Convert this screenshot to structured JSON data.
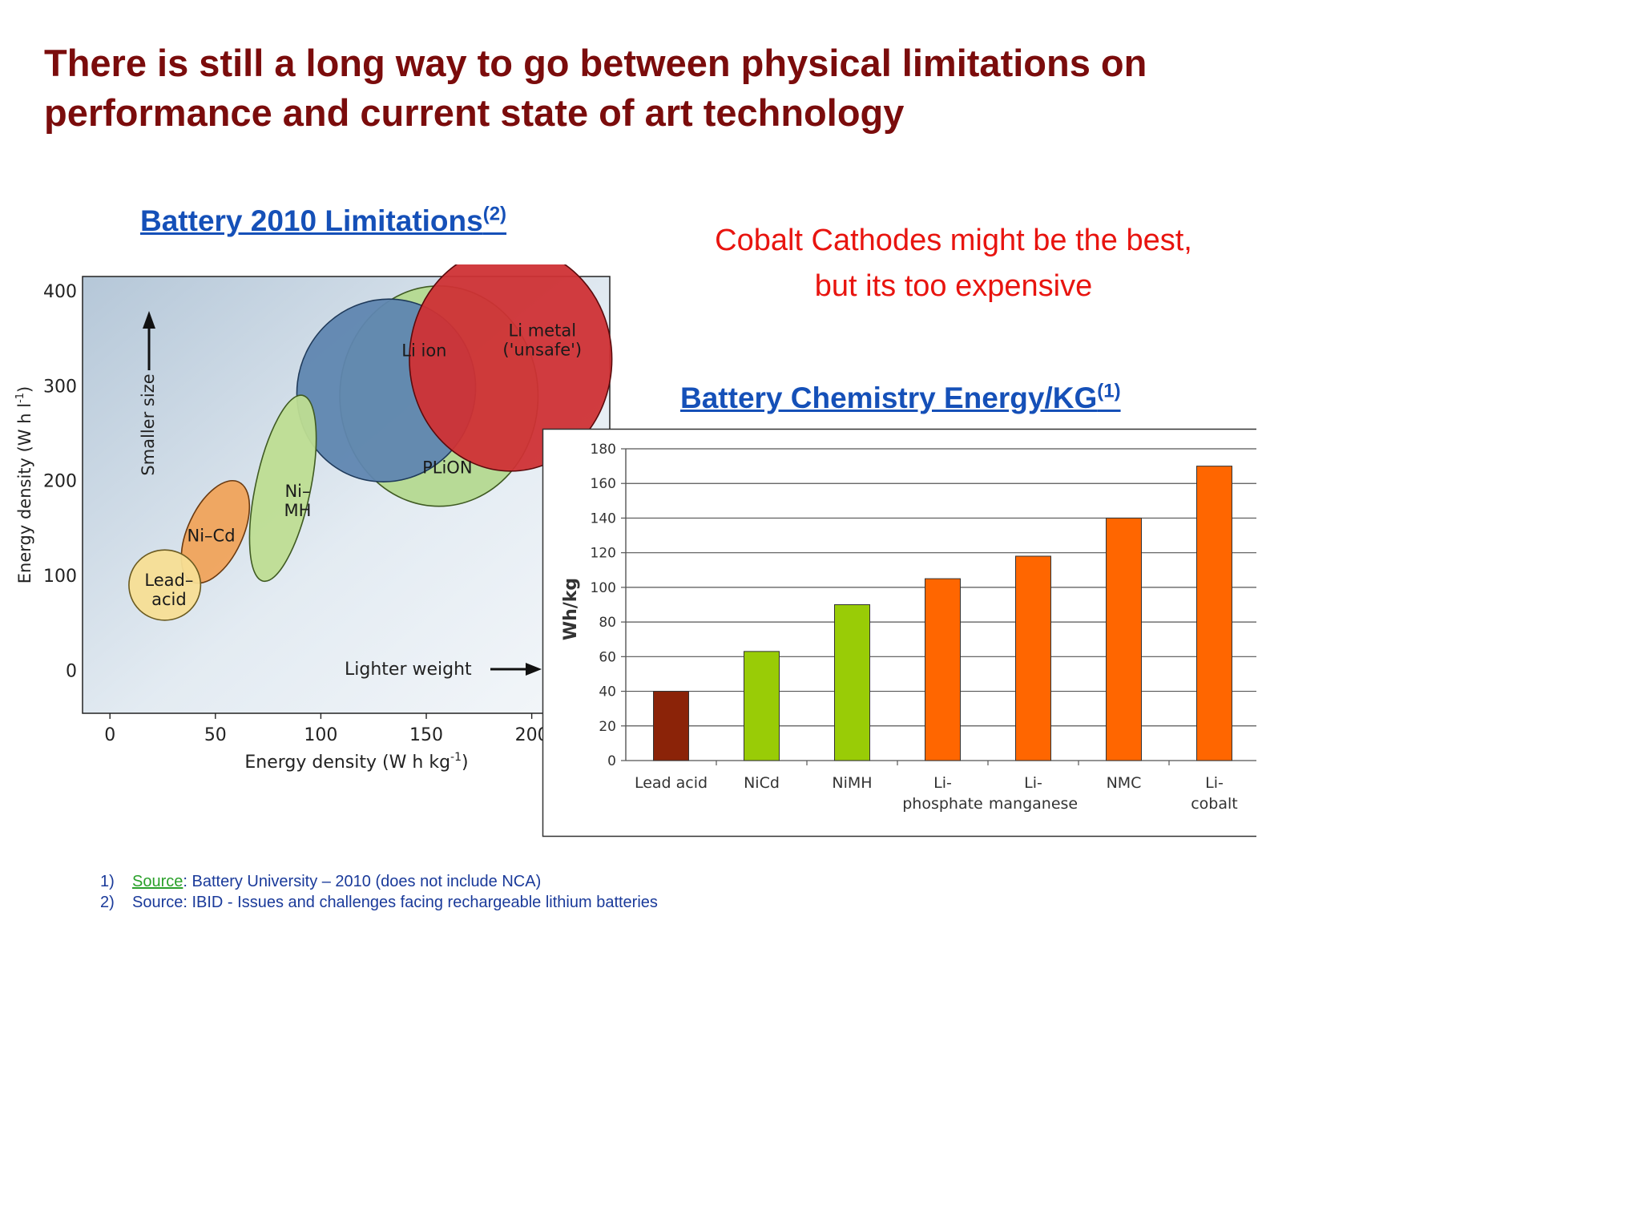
{
  "title": "There is still a long way to go between physical limitations on performance and current state of art technology",
  "left_heading": {
    "text": "Battery 2010 Limitations",
    "sup": "(2)"
  },
  "callout": {
    "line1": "Cobalt Cathodes might be the best,",
    "line2": "but its too expensive"
  },
  "right_heading": {
    "text": "Battery Chemistry Energy/KG",
    "sup": "(1)"
  },
  "footnotes": [
    {
      "num": "1)",
      "link": "Source",
      "text": ": Battery University – 2010 (does not include NCA)"
    },
    {
      "num": "2)",
      "link": "",
      "text": "Source: IBID - Issues and challenges facing rechargeable lithium batteries"
    }
  ],
  "colors": {
    "title": "#7b0c0c",
    "heading": "#1550b8",
    "callout": "#e8140f",
    "footnote": "#1a3a9a",
    "source_link": "#2aa02a"
  },
  "chart_data": [
    {
      "type": "scatter",
      "subtype": "ellipse-regions",
      "xlabel": "Energy density (W h kg",
      "xlabel_sup": "-1",
      "ylabel": "Energy density (W h l",
      "ylabel_sup": "-1",
      "xlim": [
        -13,
        237
      ],
      "ylim": [
        -45,
        415
      ],
      "x_ticks": [
        0,
        50,
        100,
        150,
        200
      ],
      "y_ticks": [
        0,
        100,
        200,
        300,
        400
      ],
      "annotations": {
        "up_arrow": "Smaller size",
        "right_arrow": "Lighter weight"
      },
      "regions": [
        {
          "name": "PLiON",
          "label_lines": [
            "PLiON"
          ],
          "cx": 156,
          "cy": 289,
          "rx": 47,
          "ry": 116,
          "rot": 0,
          "fill": "#b4d990",
          "stroke": "#3f5a22",
          "label_at": [
            160,
            208
          ]
        },
        {
          "name": "Li ion",
          "label_lines": [
            "Li ion"
          ],
          "cx": 131,
          "cy": 295,
          "rx": 42,
          "ry": 97,
          "rot": 28,
          "fill": "#5f86b0",
          "stroke": "#1f3a5a",
          "label_at": [
            149,
            331
          ]
        },
        {
          "name": "Li metal ('unsafe')",
          "label_lines": [
            "Li metal",
            "('unsafe')"
          ],
          "cx": 190,
          "cy": 328,
          "rx": 48,
          "ry": 118,
          "rot": 0,
          "fill": "#cf3235",
          "stroke": "#5a0a0c",
          "label_at": [
            205,
            352
          ]
        },
        {
          "name": "Ni–MH",
          "label_lines": [
            "Ni–",
            "MH"
          ],
          "cx": 82,
          "cy": 192,
          "rx": 13,
          "ry": 100,
          "rot": 12,
          "fill": "#bedd92",
          "stroke": "#3f5a22",
          "label_at": [
            89,
            183
          ]
        },
        {
          "name": "Ni–Cd",
          "label_lines": [
            "Ni–Cd"
          ],
          "cx": 50,
          "cy": 146,
          "rx": 13,
          "ry": 58,
          "rot": 25,
          "fill": "#f0a35b",
          "stroke": "#6a3a10",
          "label_at": [
            48,
            136
          ]
        },
        {
          "name": "Lead–acid",
          "label_lines": [
            "Lead–",
            "acid"
          ],
          "cx": 26,
          "cy": 90,
          "rx": 17,
          "ry": 37,
          "rot": 0,
          "fill": "#f7de95",
          "stroke": "#6a5a20",
          "label_at": [
            28,
            89
          ]
        }
      ]
    },
    {
      "type": "bar",
      "categories": [
        "Lead acid",
        "NiCd",
        "NiMH",
        "Li-phosphate",
        "Li-manganese",
        "NMC",
        "Li-cobalt"
      ],
      "category_lines": [
        [
          "Lead acid"
        ],
        [
          "NiCd"
        ],
        [
          "NiMH"
        ],
        [
          "Li-",
          "phosphate"
        ],
        [
          "Li-",
          "manganese"
        ],
        [
          "NMC"
        ],
        [
          "Li-",
          "cobalt"
        ]
      ],
      "values": [
        40,
        63,
        90,
        105,
        118,
        140,
        170
      ],
      "colors": [
        "#8b2308",
        "#99cc06",
        "#99cc06",
        "#ff6600",
        "#ff6600",
        "#ff6600",
        "#ff6600"
      ],
      "ylabel": "Wh/kg",
      "ylim": [
        0,
        180
      ],
      "y_ticks": [
        0,
        20,
        40,
        60,
        80,
        100,
        120,
        140,
        160,
        180
      ],
      "grid": true
    }
  ]
}
